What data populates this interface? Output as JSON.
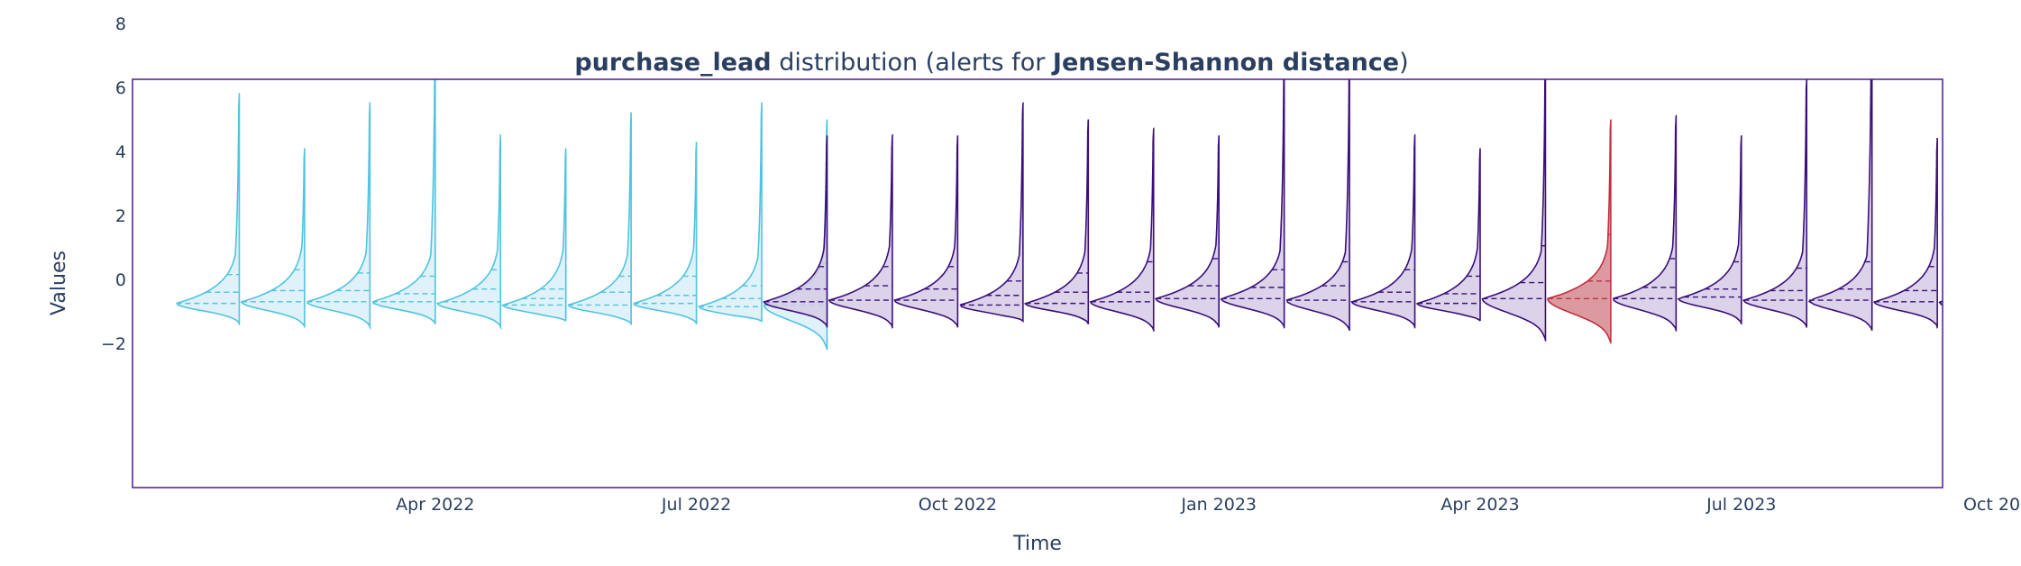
{
  "colors": {
    "reference": "#4fc3e0",
    "reference_fill": "#d9f0f8",
    "analysis": "#3b0f7a",
    "analysis_fill": "#d6cbe6",
    "alert": "#c0303f",
    "alert_fill": "#d4888f",
    "frame": "#4b1a8a",
    "text": "#2a3f5f"
  },
  "chart_data": {
    "type": "violin",
    "title": {
      "bold_feature": "purchase_lead",
      "middle": " distribution (alerts for ",
      "bold_metric": "Jensen-Shannon distance",
      "end": ")"
    },
    "xlabel": "Time",
    "ylabel": "Values",
    "ylim": [
      -2.9,
      9.9
    ],
    "y_ticks": [
      -2,
      0,
      2,
      4,
      6,
      8
    ],
    "y_tick_labels": [
      "−2",
      "0",
      "2",
      "4",
      "6",
      "8"
    ],
    "x_range_months": [
      0.0,
      21.0
    ],
    "x_ticks": [
      {
        "month": 3,
        "label": "Apr 2022"
      },
      {
        "month": 6,
        "label": "Jul 2022"
      },
      {
        "month": 9,
        "label": "Oct 2022"
      },
      {
        "month": 12,
        "label": "Jan 2023"
      },
      {
        "month": 15,
        "label": "Apr 2023"
      },
      {
        "month": 18,
        "label": "Jul 2023"
      },
      {
        "month": 21,
        "label": "Oct 2023"
      }
    ],
    "series": [
      {
        "period": "reference",
        "violins": [
          {
            "x": 0.75,
            "min": -1.4,
            "max": 5.8,
            "mode": -0.75,
            "q1": -0.75,
            "median": -0.4,
            "q3": 0.15
          },
          {
            "x": 1.5,
            "min": -1.5,
            "max": 4.1,
            "mode": -0.7,
            "q1": -0.7,
            "median": -0.35,
            "q3": 0.3
          },
          {
            "x": 2.25,
            "min": -1.5,
            "max": 5.5,
            "mode": -0.7,
            "q1": -0.7,
            "median": -0.35,
            "q3": 0.2
          },
          {
            "x": 3.0,
            "min": -1.4,
            "max": 7.3,
            "mode": -0.7,
            "q1": -0.7,
            "median": -0.45,
            "q3": 0.1
          },
          {
            "x": 3.75,
            "min": -1.5,
            "max": 4.5,
            "mode": -0.75,
            "q1": -0.7,
            "median": -0.3,
            "q3": 0.3
          },
          {
            "x": 4.5,
            "min": -1.3,
            "max": 4.1,
            "mode": -0.8,
            "q1": -0.8,
            "median": -0.6,
            "q3": -0.3
          },
          {
            "x": 5.25,
            "min": -1.4,
            "max": 5.2,
            "mode": -0.8,
            "q1": -0.8,
            "median": -0.4,
            "q3": 0.1
          },
          {
            "x": 6.0,
            "min": -1.4,
            "max": 4.3,
            "mode": -0.75,
            "q1": -0.75,
            "median": -0.5,
            "q3": 0.1
          },
          {
            "x": 6.75,
            "min": -1.3,
            "max": 5.5,
            "mode": -0.85,
            "q1": -0.85,
            "median": -0.6,
            "q3": -0.2
          },
          {
            "x": 7.5,
            "min": -2.2,
            "max": 5.0,
            "mode": -0.8,
            "q1": -0.8,
            "median": -0.3,
            "q3": 0.5
          }
        ]
      },
      {
        "period": "analysis",
        "violins": [
          {
            "x": 7.5,
            "min": -1.5,
            "max": 4.5,
            "mode": -0.7,
            "q1": -0.7,
            "median": -0.3,
            "q3": 0.4,
            "alert": false
          },
          {
            "x": 8.25,
            "min": -1.5,
            "max": 4.5,
            "mode": -0.65,
            "q1": -0.65,
            "median": -0.2,
            "q3": 0.4,
            "alert": false
          },
          {
            "x": 9.0,
            "min": -1.5,
            "max": 4.5,
            "mode": -0.65,
            "q1": -0.65,
            "median": -0.3,
            "q3": 0.4,
            "alert": false
          },
          {
            "x": 9.75,
            "min": -1.3,
            "max": 5.5,
            "mode": -0.8,
            "q1": -0.8,
            "median": -0.5,
            "q3": -0.05,
            "alert": false
          },
          {
            "x": 10.5,
            "min": -1.4,
            "max": 5.0,
            "mode": -0.75,
            "q1": -0.75,
            "median": -0.4,
            "q3": 0.2,
            "alert": false
          },
          {
            "x": 11.25,
            "min": -1.6,
            "max": 4.7,
            "mode": -0.7,
            "q1": -0.7,
            "median": -0.4,
            "q3": 0.55,
            "alert": false
          },
          {
            "x": 12.0,
            "min": -1.5,
            "max": 4.5,
            "mode": -0.6,
            "q1": -0.6,
            "median": -0.2,
            "q3": 0.65,
            "alert": false
          },
          {
            "x": 12.75,
            "min": -1.5,
            "max": 6.6,
            "mode": -0.6,
            "q1": -0.6,
            "median": -0.25,
            "q3": 0.3,
            "alert": false
          },
          {
            "x": 13.5,
            "min": -1.6,
            "max": 6.6,
            "mode": -0.65,
            "q1": -0.65,
            "median": -0.2,
            "q3": 0.55,
            "alert": false
          },
          {
            "x": 14.25,
            "min": -1.5,
            "max": 4.5,
            "mode": -0.7,
            "q1": -0.7,
            "median": -0.4,
            "q3": 0.3,
            "alert": false
          },
          {
            "x": 15.0,
            "min": -1.3,
            "max": 4.1,
            "mode": -0.75,
            "q1": -0.75,
            "median": -0.45,
            "q3": 0.1,
            "alert": false
          },
          {
            "x": 15.75,
            "min": -1.9,
            "max": 6.7,
            "mode": -0.6,
            "q1": -0.6,
            "median": -0.1,
            "q3": 1.05,
            "alert": false
          },
          {
            "x": 16.5,
            "min": -2.0,
            "max": 5.0,
            "mode": -0.6,
            "q1": -0.6,
            "median": -0.05,
            "q3": 1.4,
            "alert": true
          },
          {
            "x": 17.25,
            "min": -1.6,
            "max": 5.1,
            "mode": -0.6,
            "q1": -0.6,
            "median": -0.25,
            "q3": 0.65,
            "alert": false
          },
          {
            "x": 18.0,
            "min": -1.4,
            "max": 4.5,
            "mode": -0.6,
            "q1": -0.55,
            "median": -0.3,
            "q3": 0.55,
            "alert": false
          },
          {
            "x": 18.75,
            "min": -1.5,
            "max": 6.3,
            "mode": -0.65,
            "q1": -0.65,
            "median": -0.35,
            "q3": 0.35,
            "alert": false
          },
          {
            "x": 19.5,
            "min": -1.6,
            "max": 9.3,
            "mode": -0.65,
            "q1": -0.65,
            "median": -0.3,
            "q3": 0.55,
            "alert": false
          },
          {
            "x": 20.25,
            "min": -1.5,
            "max": 4.4,
            "mode": -0.7,
            "q1": -0.7,
            "median": -0.35,
            "q3": 0.4,
            "alert": false
          },
          {
            "x": 21.0,
            "min": -1.7,
            "max": 4.5,
            "mode": -0.7,
            "q1": -0.7,
            "median": -0.3,
            "q3": 0.55,
            "alert": false
          }
        ]
      }
    ]
  }
}
